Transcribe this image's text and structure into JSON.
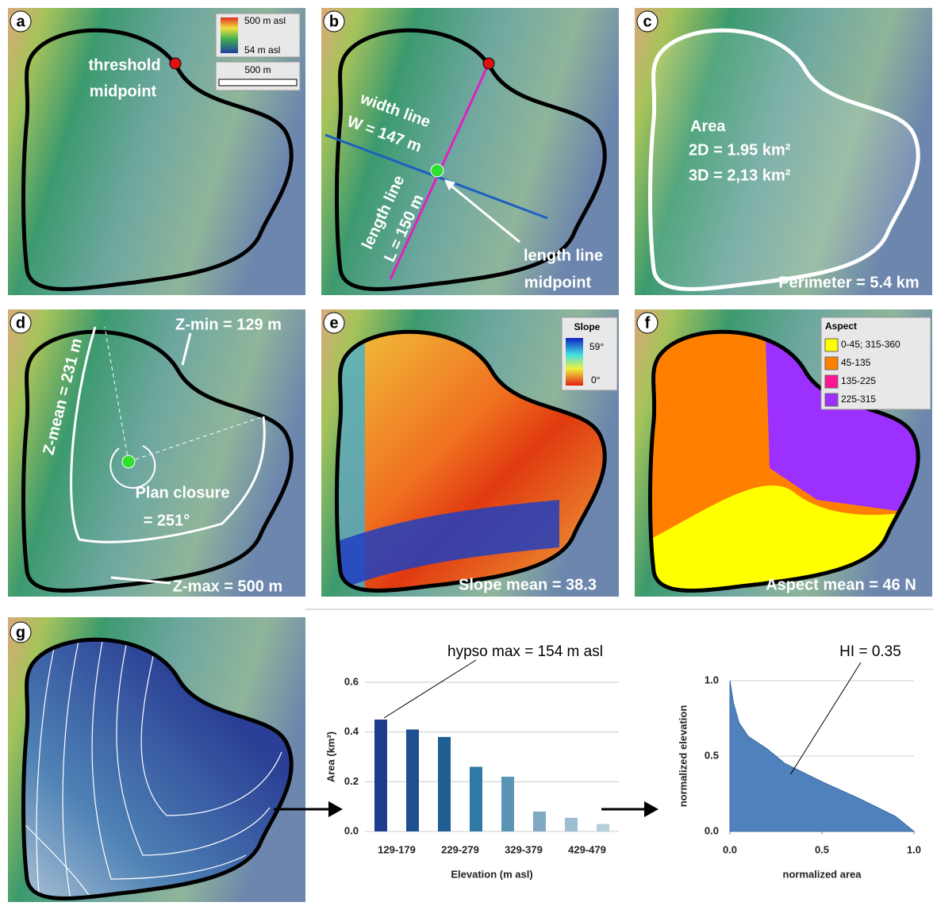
{
  "panels": [
    {
      "letter": "a",
      "labels": [
        "threshold",
        "midpoint"
      ],
      "legend": [
        "500 m asl",
        "54 m asl"
      ],
      "scale": "500 m"
    },
    {
      "letter": "b",
      "labels": [
        "width line",
        "W = 147 m",
        "length line",
        "L = 150 m",
        "length line",
        "midpoint"
      ]
    },
    {
      "letter": "c",
      "labels": [
        "Area",
        "2D = 1.95 km²",
        "3D = 2,13 km²"
      ],
      "footer": "Perimeter = 5.4 km"
    },
    {
      "letter": "d",
      "labels": [
        "Z-min = 129 m",
        "Z-mean = 231 m",
        "Plan closure",
        "= 251°",
        "Z-max = 500 m"
      ]
    },
    {
      "letter": "e",
      "legend": {
        "title": "Slope",
        "labels": [
          "59°",
          "0°"
        ]
      },
      "footer": "Slope mean = 38.3"
    },
    {
      "letter": "f",
      "legend": {
        "title": "Aspect",
        "labels": [
          "0-45; 315-360",
          "45-135",
          "135-225",
          "225-315"
        ],
        "colors": [
          "#ffff00",
          "#ff8000",
          "#ff1493",
          "#9b30ff"
        ]
      },
      "footer": "Aspect mean = 46 N"
    },
    {
      "letter": "g"
    }
  ],
  "chart_data": [
    {
      "type": "bar",
      "annotation": "hypso max = 154 m asl",
      "categories": [
        "129-179",
        null,
        "229-279",
        null,
        "329-379",
        null,
        "429-479",
        null
      ],
      "values": [
        0.45,
        0.41,
        0.38,
        0.26,
        0.22,
        0.08,
        0.055,
        0.03
      ],
      "colors": [
        "#1f3c8c",
        "#1e4f8f",
        "#1f5f94",
        "#2f7aa3",
        "#5a95b5",
        "#7fa9c3",
        "#9dbdd0",
        "#b6cedb"
      ],
      "xlabel": "Elevation (m asl)",
      "ylabel": "Area (km²)",
      "ylim": [
        0,
        0.6
      ],
      "yticks": [
        {
          "value": 0,
          "label": "0.0"
        },
        0.2,
        0.4,
        0.6
      ],
      "grid": true
    },
    {
      "type": "area",
      "annotation": "HI = 0.35",
      "x": [
        0,
        0.02,
        0.05,
        0.1,
        0.2,
        0.3,
        0.5,
        0.7,
        0.9,
        1.0
      ],
      "values": [
        1.0,
        0.85,
        0.72,
        0.63,
        0.55,
        0.45,
        0.33,
        0.22,
        0.1,
        0
      ],
      "color": "#4f81bd",
      "xlabel": "normalized area",
      "ylabel": "normalized elevation",
      "xlim": [
        0,
        1
      ],
      "ylim": [
        0,
        1
      ],
      "xticks": [
        {
          "value": 0,
          "label": "0.0"
        },
        0.5,
        {
          "value": 1,
          "label": "1.0"
        }
      ],
      "yticks": [
        {
          "value": 0,
          "label": "0.0"
        },
        0.5,
        {
          "value": 1,
          "label": "1.0"
        }
      ],
      "grid": true
    }
  ]
}
